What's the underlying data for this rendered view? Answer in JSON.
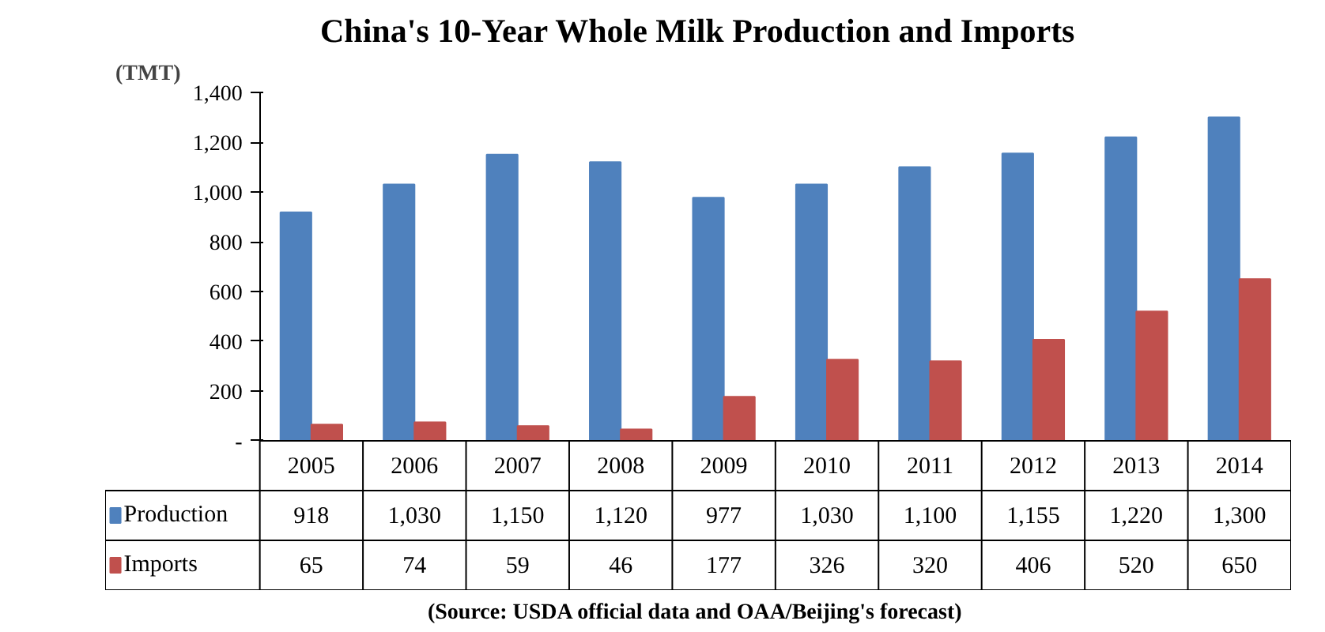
{
  "chart_data": {
    "type": "bar",
    "title": "China's 10-Year Whole Milk Production and Imports",
    "ylabel": "(TMT)",
    "categories": [
      "2005",
      "2006",
      "2007",
      "2008",
      "2009",
      "2010",
      "2011",
      "2012",
      "2013",
      "2014"
    ],
    "series": [
      {
        "name": "Production",
        "color": "#4f81bd",
        "values": [
          918,
          1030,
          1150,
          1120,
          977,
          1030,
          1100,
          1155,
          1220,
          1300
        ],
        "value_labels": [
          "918",
          "1,030",
          "1,150",
          "1,120",
          "977",
          "1,030",
          "1,100",
          "1,155",
          "1,220",
          "1,300"
        ]
      },
      {
        "name": "Imports",
        "color": "#c0504d",
        "values": [
          65,
          74,
          59,
          46,
          177,
          326,
          320,
          406,
          520,
          650
        ],
        "value_labels": [
          "65",
          "74",
          "59",
          "46",
          "177",
          "326",
          "320",
          "406",
          "520",
          "650"
        ]
      }
    ],
    "ylim": [
      0,
      1400
    ],
    "yticks": [
      {
        "value": 0,
        "label": "-"
      },
      {
        "value": 200,
        "label": "200"
      },
      {
        "value": 400,
        "label": "400"
      },
      {
        "value": 600,
        "label": "600"
      },
      {
        "value": 800,
        "label": "800"
      },
      {
        "value": 1000,
        "label": "1,000"
      },
      {
        "value": 1200,
        "label": "1,200"
      },
      {
        "value": 1400,
        "label": "1,400"
      }
    ],
    "tick_labels": "y",
    "grid": false,
    "legend": "bottom",
    "annotations": [
      "(Source: USDA  official data and OAA/Beijing's forecast)"
    ]
  }
}
